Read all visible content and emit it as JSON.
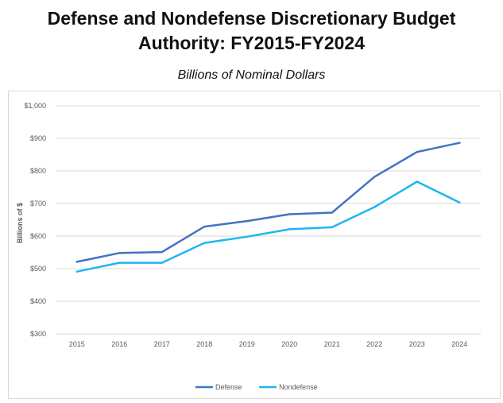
{
  "title_lines": [
    "Defense and Nondefense Discretionary Budget",
    "Authority: FY2015-FY2024"
  ],
  "subtitle": "Billions of Nominal Dollars",
  "colors": {
    "Defense": "#4472c4",
    "Nondefense": "#1fb6f0",
    "grid": "#d9d9d9"
  },
  "chart_data": {
    "type": "line",
    "title": "Defense and Nondefense Discretionary Budget Authority: FY2015-FY2024",
    "subtitle": "Billions of Nominal Dollars",
    "xlabel": "",
    "ylabel": "Billions of $",
    "ylim": [
      300,
      1000
    ],
    "yticks": [
      300,
      400,
      500,
      600,
      700,
      800,
      900,
      1000
    ],
    "ytick_labels": [
      "$300",
      "$400",
      "$500",
      "$600",
      "$700",
      "$800",
      "$900",
      "$1,000"
    ],
    "categories": [
      "2015",
      "2016",
      "2017",
      "2018",
      "2019",
      "2020",
      "2021",
      "2022",
      "2023",
      "2024"
    ],
    "grid": true,
    "legend": "bottom",
    "series": [
      {
        "name": "Defense",
        "values": [
          521,
          548,
          551,
          629,
          646,
          667,
          672,
          782,
          858,
          886
        ]
      },
      {
        "name": "Nondefense",
        "values": [
          491,
          518,
          518,
          579,
          598,
          621,
          627,
          689,
          767,
          703
        ]
      }
    ]
  }
}
